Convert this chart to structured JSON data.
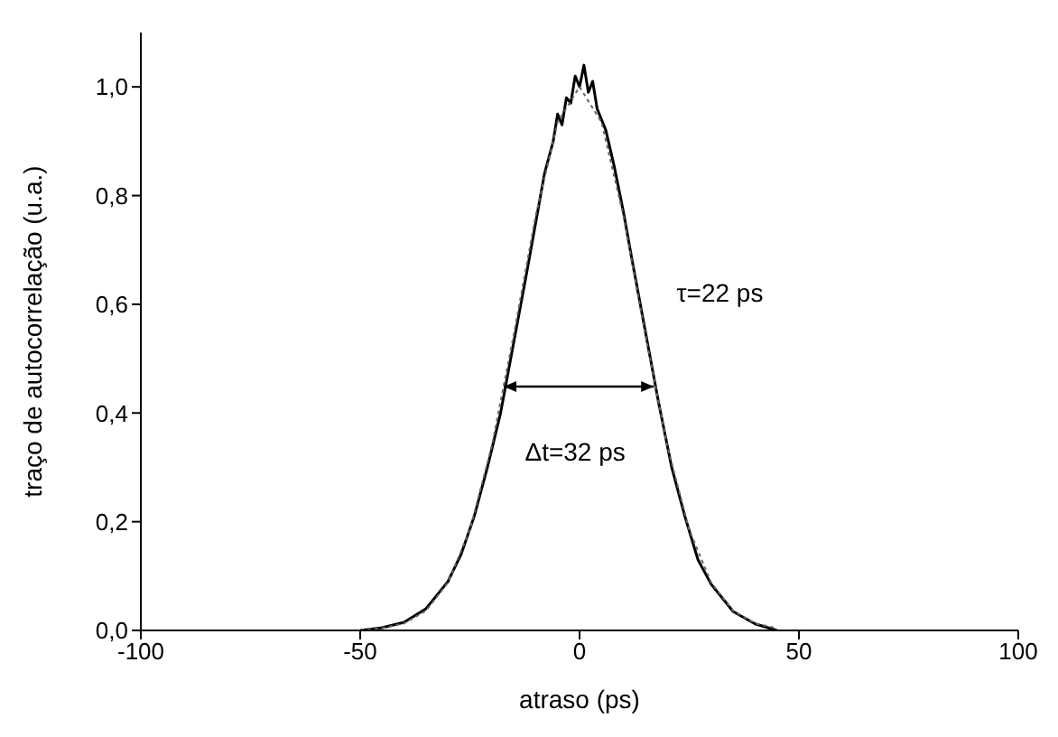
{
  "chart_data": {
    "type": "line",
    "xlabel": "atraso (ps)",
    "ylabel": "traço de autocorrelação (u.a.)",
    "xlim": [
      -100,
      100
    ],
    "xticks": [
      -100,
      -50,
      0,
      50,
      100
    ],
    "ylim": [
      0,
      1.1
    ],
    "yticks": [
      {
        "value": 0,
        "label": "0,0"
      },
      {
        "value": 0.2,
        "label": "0,2"
      },
      {
        "value": 0.4,
        "label": "0,4"
      },
      {
        "value": 0.6,
        "label": "0,6"
      },
      {
        "value": 0.8,
        "label": "0,8"
      },
      {
        "value": 1.0,
        "label": "1,0"
      }
    ],
    "grid": false,
    "legend": false,
    "marker": "none",
    "annotations": [
      "τ=22 ps",
      "Δt=32 ps"
    ],
    "series": [
      {
        "color": "#000000",
        "line_style": "solid",
        "x": [
          -50,
          -45,
          -40,
          -35,
          -30,
          -27,
          -24,
          -21,
          -18,
          -15,
          -12,
          -10,
          -8,
          -6,
          -5,
          -4,
          -3,
          -2,
          -1,
          0,
          1,
          2,
          3,
          4,
          6,
          8,
          10,
          12,
          15,
          18,
          21,
          24,
          27,
          30,
          35,
          40,
          45
        ],
        "values": [
          0.0,
          0.005,
          0.015,
          0.04,
          0.09,
          0.14,
          0.21,
          0.3,
          0.4,
          0.53,
          0.66,
          0.75,
          0.84,
          0.9,
          0.95,
          0.93,
          0.98,
          0.97,
          1.02,
          1.0,
          1.04,
          0.99,
          1.01,
          0.96,
          0.92,
          0.85,
          0.77,
          0.68,
          0.55,
          0.42,
          0.3,
          0.21,
          0.13,
          0.085,
          0.035,
          0.012,
          0.0
        ]
      },
      {
        "color": "#666666",
        "line_style": "dotted",
        "x": [
          -50,
          -45,
          -40,
          -35,
          -30,
          -25,
          -20,
          -15,
          -10,
          -5,
          0,
          5,
          10,
          15,
          20,
          25,
          30,
          35,
          40,
          45
        ],
        "values": [
          0.001,
          0.004,
          0.013,
          0.036,
          0.088,
          0.185,
          0.339,
          0.544,
          0.763,
          0.935,
          1.0,
          0.935,
          0.763,
          0.544,
          0.339,
          0.185,
          0.088,
          0.036,
          0.013,
          0.004
        ]
      }
    ]
  }
}
